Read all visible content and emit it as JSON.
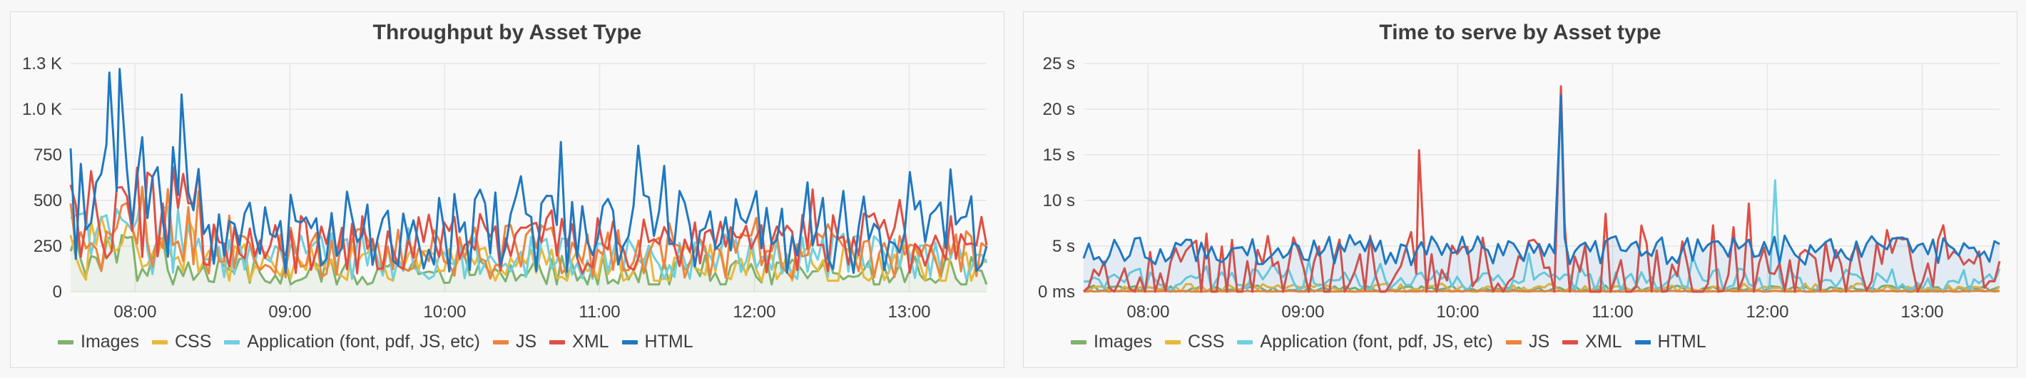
{
  "chart_data": [
    {
      "type": "line",
      "title": "Throughput by Asset Type",
      "xlabel": "",
      "ylabel": "",
      "x_ticks": [
        "08:00",
        "09:00",
        "10:00",
        "11:00",
        "12:00",
        "13:00"
      ],
      "y_ticks": [
        "0",
        "250",
        "500",
        "750",
        "1.0 K",
        "1.3 K"
      ],
      "x_range": [
        "07:35",
        "13:30"
      ],
      "ylim": [
        0,
        1250
      ],
      "grid": true,
      "legend_position": "bottom-left",
      "series": [
        {
          "name": "Images",
          "color": "#7eb26d",
          "fill": true,
          "base": 110,
          "amp": 90,
          "min": 40,
          "spike": 30
        },
        {
          "name": "CSS",
          "color": "#eab839",
          "fill": false,
          "base": 150,
          "amp": 110,
          "min": 60,
          "spike": 40
        },
        {
          "name": "Application (font, pdf, JS, etc)",
          "color": "#6ed0e0",
          "fill": false,
          "base": 190,
          "amp": 130,
          "min": 70,
          "spike": 60
        },
        {
          "name": "JS",
          "color": "#ef843c",
          "fill": false,
          "base": 220,
          "amp": 150,
          "min": 70,
          "spike": 80
        },
        {
          "name": "XML",
          "color": "#e24d42",
          "fill": false,
          "base": 260,
          "amp": 170,
          "min": 50,
          "spike": 150
        },
        {
          "name": "HTML",
          "color": "#1f78c1",
          "fill": false,
          "base": 330,
          "amp": 230,
          "min": 40,
          "spike": 450
        }
      ],
      "peaks": [
        {
          "x": "07:50",
          "series": "HTML",
          "y": 1200
        },
        {
          "x": "07:54",
          "series": "HTML",
          "y": 1220
        },
        {
          "x": "08:18",
          "series": "HTML",
          "y": 1080
        },
        {
          "x": "10:45",
          "series": "HTML",
          "y": 820
        },
        {
          "x": "11:15",
          "series": "HTML",
          "y": 800
        },
        {
          "x": "13:16",
          "series": "HTML",
          "y": 670
        }
      ]
    },
    {
      "type": "line",
      "title": "Time to serve by Asset type",
      "xlabel": "",
      "ylabel": "",
      "x_ticks": [
        "08:00",
        "09:00",
        "10:00",
        "11:00",
        "12:00",
        "13:00"
      ],
      "y_ticks": [
        "0 ms",
        "5 s",
        "10 s",
        "15 s",
        "20 s",
        "25 s"
      ],
      "x_range": [
        "07:35",
        "13:30"
      ],
      "ylim": [
        0,
        25
      ],
      "grid": true,
      "legend_position": "bottom-left",
      "series": [
        {
          "name": "Images",
          "color": "#7eb26d",
          "fill": false,
          "base": 0.3,
          "amp": 0.4,
          "min": 0,
          "spike": 0
        },
        {
          "name": "CSS",
          "color": "#eab839",
          "fill": false,
          "base": 0.4,
          "amp": 0.5,
          "min": 0,
          "spike": 0
        },
        {
          "name": "Application (font, pdf, JS, etc)",
          "color": "#6ed0e0",
          "fill": false,
          "base": 1.2,
          "amp": 1.4,
          "min": 0,
          "spike": 2
        },
        {
          "name": "JS",
          "color": "#ef843c",
          "fill": false,
          "base": 0.05,
          "amp": 0.05,
          "min": 0,
          "spike": 0
        },
        {
          "name": "XML",
          "color": "#e24d42",
          "fill": false,
          "base": 2.0,
          "amp": 4.0,
          "min": 0,
          "spike": 6
        },
        {
          "name": "HTML",
          "color": "#1f78c1",
          "fill": true,
          "base": 4.5,
          "amp": 1.6,
          "min": 1.5,
          "spike": 1
        }
      ],
      "peaks": [
        {
          "x": "09:45",
          "series": "XML",
          "y": 15.5
        },
        {
          "x": "10:40",
          "series": "XML",
          "y": 22.5
        },
        {
          "x": "10:40",
          "series": "HTML",
          "y": 21.5
        },
        {
          "x": "12:03",
          "series": "Application (font, pdf, JS, etc)",
          "y": 12.2
        }
      ]
    }
  ]
}
